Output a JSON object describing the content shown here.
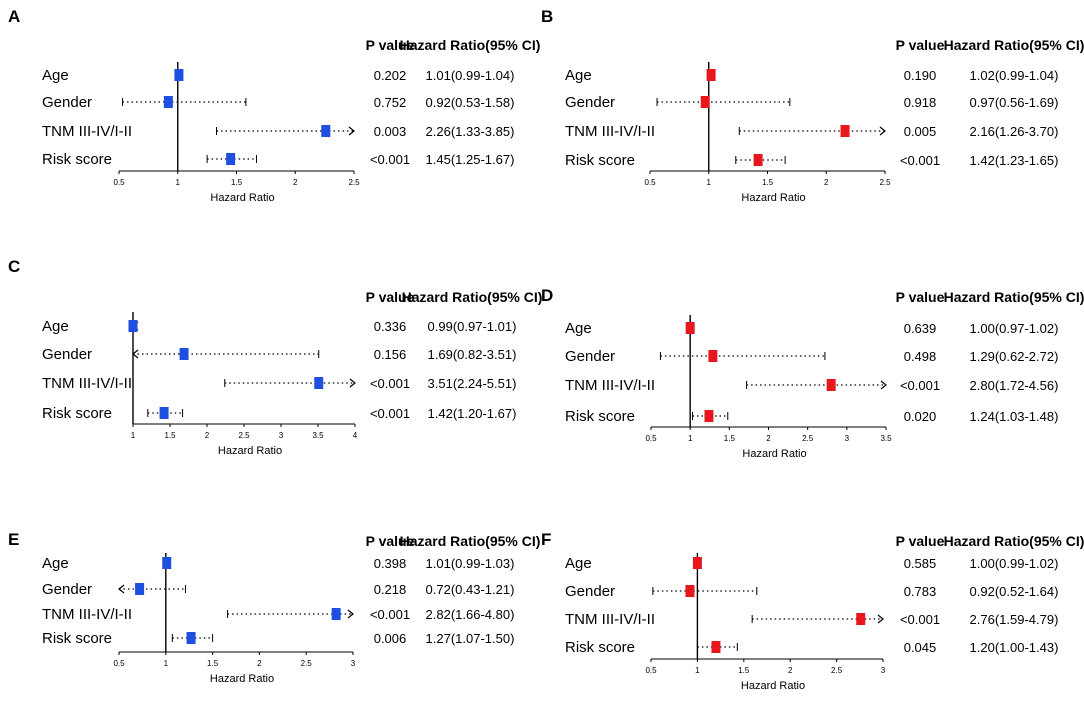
{
  "figure": {
    "p_value_header": "P value",
    "hr_header": "Hazard Ratio(95% CI)",
    "x_axis_title": "Hazard Ratio"
  },
  "colors": {
    "blue": "#1f4fe0",
    "red": "#e8161d"
  },
  "chart_data": [
    {
      "type": "forest",
      "panel": "A",
      "marker_color": "blue",
      "xlim": [
        0.5,
        2.5
      ],
      "ticks": [
        0.5,
        1,
        1.5,
        2,
        2.5
      ],
      "tick_labels": [
        "0.5",
        "1",
        "1.5",
        "2",
        "2.5"
      ],
      "reference_line": 1,
      "rows": [
        {
          "label": "Age",
          "hr": 1.01,
          "lo": 0.99,
          "hi": 1.04,
          "p_text": "0.202",
          "hr_text": "1.01(0.99-1.04)"
        },
        {
          "label": "Gender",
          "hr": 0.92,
          "lo": 0.53,
          "hi": 1.58,
          "p_text": "0.752",
          "hr_text": "0.92(0.53-1.58)"
        },
        {
          "label": "TNM III-IV/I-II",
          "hr": 2.26,
          "lo": 1.33,
          "hi": 3.85,
          "p_text": "0.003",
          "hr_text": "2.26(1.33-3.85)"
        },
        {
          "label": "Risk score",
          "hr": 1.45,
          "lo": 1.25,
          "hi": 1.67,
          "p_text": "<0.001",
          "hr_text": "1.45(1.25-1.67)"
        }
      ]
    },
    {
      "type": "forest",
      "panel": "B",
      "marker_color": "red",
      "xlim": [
        0.5,
        2.5
      ],
      "ticks": [
        0.5,
        1,
        1.5,
        2,
        2.5
      ],
      "tick_labels": [
        "0.5",
        "1",
        "1.5",
        "2",
        "2.5"
      ],
      "reference_line": 1,
      "rows": [
        {
          "label": "Age",
          "hr": 1.02,
          "lo": 0.99,
          "hi": 1.04,
          "p_text": "0.190",
          "hr_text": "1.02(0.99-1.04)"
        },
        {
          "label": "Gender",
          "hr": 0.97,
          "lo": 0.56,
          "hi": 1.69,
          "p_text": "0.918",
          "hr_text": "0.97(0.56-1.69)"
        },
        {
          "label": "TNM III-IV/I-II",
          "hr": 2.16,
          "lo": 1.26,
          "hi": 3.7,
          "p_text": "0.005",
          "hr_text": "2.16(1.26-3.70)"
        },
        {
          "label": "Risk score",
          "hr": 1.42,
          "lo": 1.23,
          "hi": 1.65,
          "p_text": "<0.001",
          "hr_text": "1.42(1.23-1.65)"
        }
      ]
    },
    {
      "type": "forest",
      "panel": "C",
      "marker_color": "blue",
      "xlim": [
        1,
        4
      ],
      "ticks": [
        1,
        1.5,
        2,
        2.5,
        3,
        3.5,
        4
      ],
      "tick_labels": [
        "1",
        "1.5",
        "2",
        "2.5",
        "3",
        "3.5",
        "4"
      ],
      "reference_line": 1,
      "rows": [
        {
          "label": "Age",
          "hr": 0.99,
          "lo": 0.97,
          "hi": 1.01,
          "p_text": "0.336",
          "hr_text": "0.99(0.97-1.01)"
        },
        {
          "label": "Gender",
          "hr": 1.69,
          "lo": 0.82,
          "hi": 3.51,
          "p_text": "0.156",
          "hr_text": "1.69(0.82-3.51)"
        },
        {
          "label": "TNM III-IV/I-II",
          "hr": 3.51,
          "lo": 2.24,
          "hi": 5.51,
          "p_text": "<0.001",
          "hr_text": "3.51(2.24-5.51)"
        },
        {
          "label": "Risk score",
          "hr": 1.42,
          "lo": 1.2,
          "hi": 1.67,
          "p_text": "<0.001",
          "hr_text": "1.42(1.20-1.67)"
        }
      ]
    },
    {
      "type": "forest",
      "panel": "D",
      "marker_color": "red",
      "xlim": [
        0.5,
        3.5
      ],
      "ticks": [
        0.5,
        1,
        1.5,
        2,
        2.5,
        3,
        3.5
      ],
      "tick_labels": [
        "0.5",
        "1",
        "1.5",
        "2",
        "2.5",
        "3",
        "3.5"
      ],
      "reference_line": 1,
      "rows": [
        {
          "label": "Age",
          "hr": 1.0,
          "lo": 0.97,
          "hi": 1.02,
          "p_text": "0.639",
          "hr_text": "1.00(0.97-1.02)"
        },
        {
          "label": "Gender",
          "hr": 1.29,
          "lo": 0.62,
          "hi": 2.72,
          "p_text": "0.498",
          "hr_text": "1.29(0.62-2.72)"
        },
        {
          "label": "TNM III-IV/I-II",
          "hr": 2.8,
          "lo": 1.72,
          "hi": 4.56,
          "p_text": "<0.001",
          "hr_text": "2.80(1.72-4.56)"
        },
        {
          "label": "Risk score",
          "hr": 1.24,
          "lo": 1.03,
          "hi": 1.48,
          "p_text": "0.020",
          "hr_text": "1.24(1.03-1.48)"
        }
      ]
    },
    {
      "type": "forest",
      "panel": "E",
      "marker_color": "blue",
      "xlim": [
        0.5,
        3
      ],
      "ticks": [
        0.5,
        1,
        1.5,
        2,
        2.5,
        3
      ],
      "tick_labels": [
        "0.5",
        "1",
        "1.5",
        "2",
        "2.5",
        "3"
      ],
      "reference_line": 1,
      "rows": [
        {
          "label": "Age",
          "hr": 1.01,
          "lo": 0.99,
          "hi": 1.03,
          "p_text": "0.398",
          "hr_text": "1.01(0.99-1.03)"
        },
        {
          "label": "Gender",
          "hr": 0.72,
          "lo": 0.43,
          "hi": 1.21,
          "p_text": "0.218",
          "hr_text": "0.72(0.43-1.21)"
        },
        {
          "label": "TNM III-IV/I-II",
          "hr": 2.82,
          "lo": 1.66,
          "hi": 4.8,
          "p_text": "<0.001",
          "hr_text": "2.82(1.66-4.80)"
        },
        {
          "label": "Risk score",
          "hr": 1.27,
          "lo": 1.07,
          "hi": 1.5,
          "p_text": "0.006",
          "hr_text": "1.27(1.07-1.50)"
        }
      ]
    },
    {
      "type": "forest",
      "panel": "F",
      "marker_color": "red",
      "xlim": [
        0.5,
        3
      ],
      "ticks": [
        0.5,
        1,
        1.5,
        2,
        2.5,
        3
      ],
      "tick_labels": [
        "0.5",
        "1",
        "1.5",
        "2",
        "2.5",
        "3"
      ],
      "reference_line": 1,
      "rows": [
        {
          "label": "Age",
          "hr": 1.0,
          "lo": 0.99,
          "hi": 1.02,
          "p_text": "0.585",
          "hr_text": "1.00(0.99-1.02)"
        },
        {
          "label": "Gender",
          "hr": 0.92,
          "lo": 0.52,
          "hi": 1.64,
          "p_text": "0.783",
          "hr_text": "0.92(0.52-1.64)"
        },
        {
          "label": "TNM III-IV/I-II",
          "hr": 2.76,
          "lo": 1.59,
          "hi": 4.79,
          "p_text": "<0.001",
          "hr_text": "2.76(1.59-4.79)"
        },
        {
          "label": "Risk score",
          "hr": 1.2,
          "lo": 1.0,
          "hi": 1.43,
          "p_text": "0.045",
          "hr_text": "1.20(1.00-1.43)"
        }
      ]
    }
  ]
}
